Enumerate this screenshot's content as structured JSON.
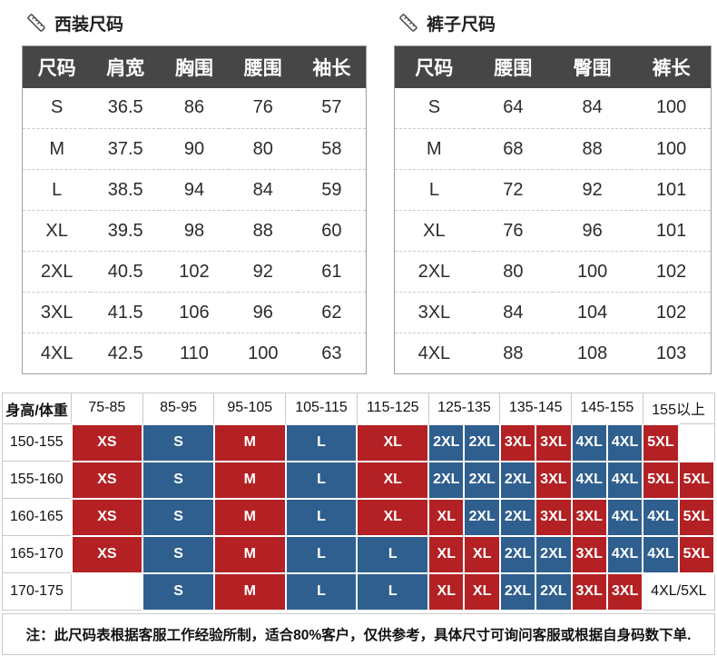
{
  "colors": {
    "red": "#b32124",
    "blue": "#2f5f8e",
    "header_dark": "#464646"
  },
  "suit_table": {
    "title": "西装尺码",
    "headers": [
      "尺码",
      "肩宽",
      "胸围",
      "腰围",
      "袖长"
    ],
    "rows": [
      [
        "S",
        "36.5",
        "86",
        "76",
        "57"
      ],
      [
        "M",
        "37.5",
        "90",
        "80",
        "58"
      ],
      [
        "L",
        "38.5",
        "94",
        "84",
        "59"
      ],
      [
        "XL",
        "39.5",
        "98",
        "88",
        "60"
      ],
      [
        "2XL",
        "40.5",
        "102",
        "92",
        "61"
      ],
      [
        "3XL",
        "41.5",
        "106",
        "96",
        "62"
      ],
      [
        "4XL",
        "42.5",
        "110",
        "100",
        "63"
      ]
    ]
  },
  "pants_table": {
    "title": "裤子尺码",
    "headers": [
      "尺码",
      "腰围",
      "臀围",
      "裤长"
    ],
    "rows": [
      [
        "S",
        "64",
        "84",
        "100"
      ],
      [
        "M",
        "68",
        "88",
        "100"
      ],
      [
        "L",
        "72",
        "92",
        "101"
      ],
      [
        "XL",
        "76",
        "96",
        "101"
      ],
      [
        "2XL",
        "80",
        "100",
        "102"
      ],
      [
        "3XL",
        "84",
        "104",
        "102"
      ],
      [
        "4XL",
        "88",
        "108",
        "103"
      ]
    ]
  },
  "matrix": {
    "corner": "身高/体重",
    "weight_headers": [
      "75-85",
      "85-95",
      "95-105",
      "105-115",
      "115-125",
      "125-135",
      "135-145",
      "145-155",
      "155以上"
    ],
    "rows": [
      {
        "height": "150-155",
        "cells": [
          {
            "t": "XS",
            "c": "red",
            "s": 2
          },
          {
            "t": "S",
            "c": "blue",
            "s": 2
          },
          {
            "t": "M",
            "c": "red",
            "s": 2
          },
          {
            "t": "L",
            "c": "blue",
            "s": 2
          },
          {
            "t": "XL",
            "c": "red",
            "s": 2
          },
          {
            "t": "2XL",
            "c": "blue",
            "s": 1
          },
          {
            "t": "2XL",
            "c": "blue",
            "s": 1
          },
          {
            "t": "3XL",
            "c": "red",
            "s": 1
          },
          {
            "t": "3XL",
            "c": "red",
            "s": 1
          },
          {
            "t": "4XL",
            "c": "blue",
            "s": 1
          },
          {
            "t": "4XL",
            "c": "blue",
            "s": 1
          },
          {
            "t": "5XL",
            "c": "red",
            "s": 1
          },
          {
            "t": "",
            "c": "white",
            "s": 1
          }
        ]
      },
      {
        "height": "155-160",
        "cells": [
          {
            "t": "XS",
            "c": "red",
            "s": 2
          },
          {
            "t": "S",
            "c": "blue",
            "s": 2
          },
          {
            "t": "M",
            "c": "red",
            "s": 2
          },
          {
            "t": "L",
            "c": "blue",
            "s": 2
          },
          {
            "t": "XL",
            "c": "red",
            "s": 2
          },
          {
            "t": "2XL",
            "c": "blue",
            "s": 1
          },
          {
            "t": "2XL",
            "c": "blue",
            "s": 1
          },
          {
            "t": "2XL",
            "c": "blue",
            "s": 1
          },
          {
            "t": "3XL",
            "c": "red",
            "s": 1
          },
          {
            "t": "4XL",
            "c": "blue",
            "s": 1
          },
          {
            "t": "4XL",
            "c": "blue",
            "s": 1
          },
          {
            "t": "5XL",
            "c": "red",
            "s": 1
          },
          {
            "t": "5XL",
            "c": "red",
            "s": 1
          }
        ]
      },
      {
        "height": "160-165",
        "cells": [
          {
            "t": "XS",
            "c": "red",
            "s": 2
          },
          {
            "t": "S",
            "c": "blue",
            "s": 2
          },
          {
            "t": "M",
            "c": "red",
            "s": 2
          },
          {
            "t": "L",
            "c": "blue",
            "s": 2
          },
          {
            "t": "XL",
            "c": "red",
            "s": 2
          },
          {
            "t": "XL",
            "c": "red",
            "s": 1
          },
          {
            "t": "2XL",
            "c": "blue",
            "s": 1
          },
          {
            "t": "2XL",
            "c": "blue",
            "s": 1
          },
          {
            "t": "3XL",
            "c": "red",
            "s": 1
          },
          {
            "t": "3XL",
            "c": "red",
            "s": 1
          },
          {
            "t": "4XL",
            "c": "blue",
            "s": 1
          },
          {
            "t": "4XL",
            "c": "blue",
            "s": 1
          },
          {
            "t": "5XL",
            "c": "red",
            "s": 1
          }
        ]
      },
      {
        "height": "165-170",
        "cells": [
          {
            "t": "XS",
            "c": "red",
            "s": 2
          },
          {
            "t": "S",
            "c": "blue",
            "s": 2
          },
          {
            "t": "M",
            "c": "red",
            "s": 2
          },
          {
            "t": "L",
            "c": "blue",
            "s": 2
          },
          {
            "t": "L",
            "c": "blue",
            "s": 2
          },
          {
            "t": "XL",
            "c": "red",
            "s": 1
          },
          {
            "t": "XL",
            "c": "red",
            "s": 1
          },
          {
            "t": "2XL",
            "c": "blue",
            "s": 1
          },
          {
            "t": "2XL",
            "c": "blue",
            "s": 1
          },
          {
            "t": "3XL",
            "c": "red",
            "s": 1
          },
          {
            "t": "4XL",
            "c": "blue",
            "s": 1
          },
          {
            "t": "4XL",
            "c": "blue",
            "s": 1
          },
          {
            "t": "5XL",
            "c": "red",
            "s": 1
          }
        ]
      },
      {
        "height": "170-175",
        "cells": [
          {
            "t": "",
            "c": "white",
            "s": 2
          },
          {
            "t": "S",
            "c": "blue",
            "s": 2
          },
          {
            "t": "M",
            "c": "red",
            "s": 2
          },
          {
            "t": "L",
            "c": "blue",
            "s": 2
          },
          {
            "t": "L",
            "c": "blue",
            "s": 2
          },
          {
            "t": "XL",
            "c": "red",
            "s": 1
          },
          {
            "t": "XL",
            "c": "red",
            "s": 1
          },
          {
            "t": "2XL",
            "c": "blue",
            "s": 1
          },
          {
            "t": "2XL",
            "c": "blue",
            "s": 1
          },
          {
            "t": "3XL",
            "c": "red",
            "s": 1
          },
          {
            "t": "3XL",
            "c": "red",
            "s": 1
          },
          {
            "t": "4XL/5XL",
            "c": "white",
            "s": 2
          }
        ]
      }
    ]
  },
  "note": "注：此尺码表根据客服工作经验所制，适合80%客户，仅供参考，具体尺寸可询问客服或根据自身码数下单."
}
